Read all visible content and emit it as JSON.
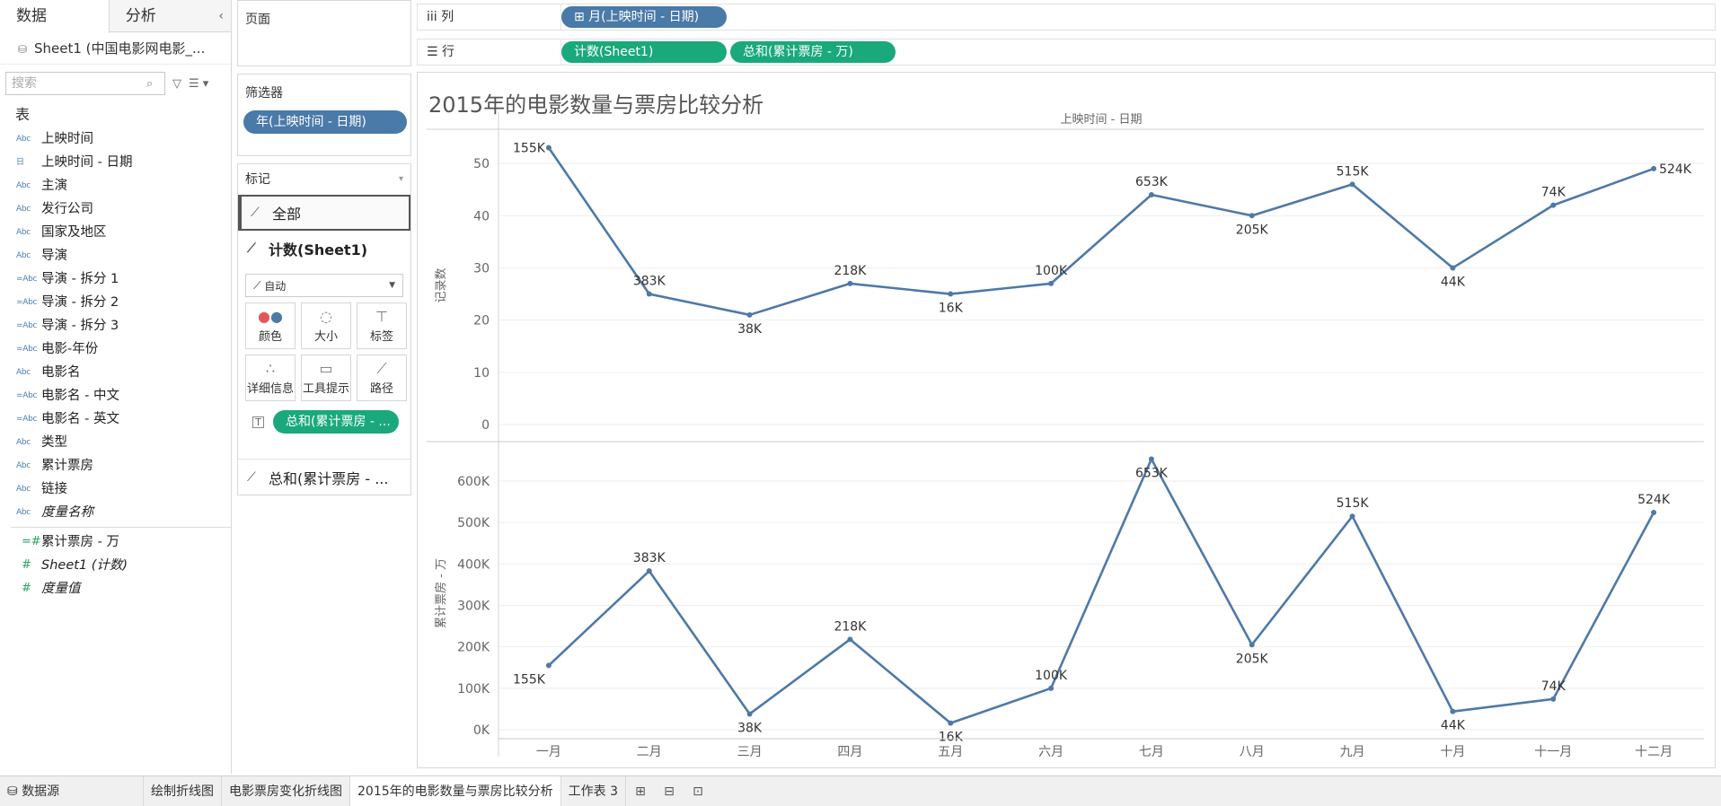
{
  "left_pane": {
    "tabs": [
      "数据",
      "分析"
    ],
    "collapse_glyph": "‹",
    "datasource": "Sheet1 (中国电影网电影_...",
    "search_placeholder": "搜索",
    "section_title": "表",
    "dimension_fields": [
      {
        "type": "Abc",
        "name": "上映时间"
      },
      {
        "type": "日",
        "name": "上映时间 - 日期"
      },
      {
        "type": "Abc",
        "name": "主演"
      },
      {
        "type": "Abc",
        "name": "发行公司"
      },
      {
        "type": "Abc",
        "name": "国家及地区"
      },
      {
        "type": "Abc",
        "name": "导演"
      },
      {
        "type": "=Abc",
        "name": "导演 - 拆分 1"
      },
      {
        "type": "=Abc",
        "name": "导演 - 拆分 2"
      },
      {
        "type": "=Abc",
        "name": "导演 - 拆分 3"
      },
      {
        "type": "=Abc",
        "name": "电影-年份"
      },
      {
        "type": "Abc",
        "name": "电影名"
      },
      {
        "type": "=Abc",
        "name": "电影名 - 中文"
      },
      {
        "type": "=Abc",
        "name": "电影名 - 英文"
      },
      {
        "type": "Abc",
        "name": "类型"
      },
      {
        "type": "Abc",
        "name": "累计票房"
      },
      {
        "type": "Abc",
        "name": "链接"
      },
      {
        "type": "Abc",
        "name": "度量名称",
        "italic": true
      }
    ],
    "measure_fields": [
      {
        "type": "=#",
        "name": "累计票房 - 万"
      },
      {
        "type": "#",
        "name": "Sheet1 (计数)",
        "italic": true
      },
      {
        "type": "#",
        "name": "度量值",
        "italic": true
      }
    ]
  },
  "pages_card": {
    "title": "页面"
  },
  "filters_card": {
    "title": "筛选器",
    "pill": "年(上映时间 - 日期)"
  },
  "marks_card": {
    "title": "标记",
    "all_label": "全部",
    "count_label": "计数(Sheet1)",
    "mark_type": "自动",
    "buttons": [
      {
        "label": "颜色",
        "icon": "color-dots-icon"
      },
      {
        "label": "大小",
        "icon": "size-icon"
      },
      {
        "label": "标签",
        "icon": "label-icon"
      },
      {
        "label": "详细信息",
        "icon": "detail-dots-icon"
      },
      {
        "label": "工具提示",
        "icon": "tooltip-icon"
      },
      {
        "label": "路径",
        "icon": "path-icon"
      }
    ],
    "label_pill": "总和(累计票房 - ...",
    "sum_label": "总和(累计票房 - ..."
  },
  "shelves": {
    "columns_label": "列",
    "columns_pill": "⊞ 月(上映时间 - 日期)",
    "rows_label": "行",
    "rows_pills": [
      "计数(Sheet1)",
      "总和(累计票房 - 万)"
    ]
  },
  "view": {
    "title": "2015年的电影数量与票房比较分析",
    "header": "上映时间 - 日期"
  },
  "chart_data": {
    "type": "line",
    "categories": [
      "一月",
      "二月",
      "三月",
      "四月",
      "五月",
      "六月",
      "七月",
      "八月",
      "九月",
      "十月",
      "十一月",
      "十二月"
    ],
    "line_color": "#4e79a7",
    "x_header": "上映时间 - 日期",
    "panes": [
      {
        "ylabel": "记录数",
        "ylim": [
          0,
          55
        ],
        "yticks": [
          0,
          10,
          20,
          30,
          40,
          50
        ],
        "ytick_labels": [
          "0",
          "10",
          "20",
          "30",
          "40",
          "50"
        ],
        "values": [
          53,
          25,
          21,
          27,
          25,
          27,
          44,
          40,
          46,
          30,
          42,
          49
        ],
        "data_labels": [
          "155K",
          "383K",
          "38K",
          "218K",
          "16K",
          "100K",
          "653K",
          "205K",
          "515K",
          "44K",
          "74K",
          "524K"
        ]
      },
      {
        "ylabel": "累计票房 - 万",
        "ylim": [
          0,
          680000
        ],
        "yticks": [
          0,
          100000,
          200000,
          300000,
          400000,
          500000,
          600000
        ],
        "ytick_labels": [
          "0K",
          "100K",
          "200K",
          "300K",
          "400K",
          "500K",
          "600K"
        ],
        "values": [
          155000,
          383000,
          38000,
          218000,
          16000,
          100000,
          653000,
          205000,
          515000,
          44000,
          74000,
          524000
        ],
        "data_labels": [
          "155K",
          "383K",
          "38K",
          "218K",
          "16K",
          "100K",
          "653K",
          "205K",
          "515K",
          "44K",
          "74K",
          "524K"
        ]
      }
    ]
  },
  "tabbar": {
    "datasource": "数据源",
    "sheets": [
      "绘制折线图",
      "电影票房变化折线图",
      "2015年的电影数量与票房比较分析",
      "工作表 3"
    ],
    "active_index": 2
  }
}
